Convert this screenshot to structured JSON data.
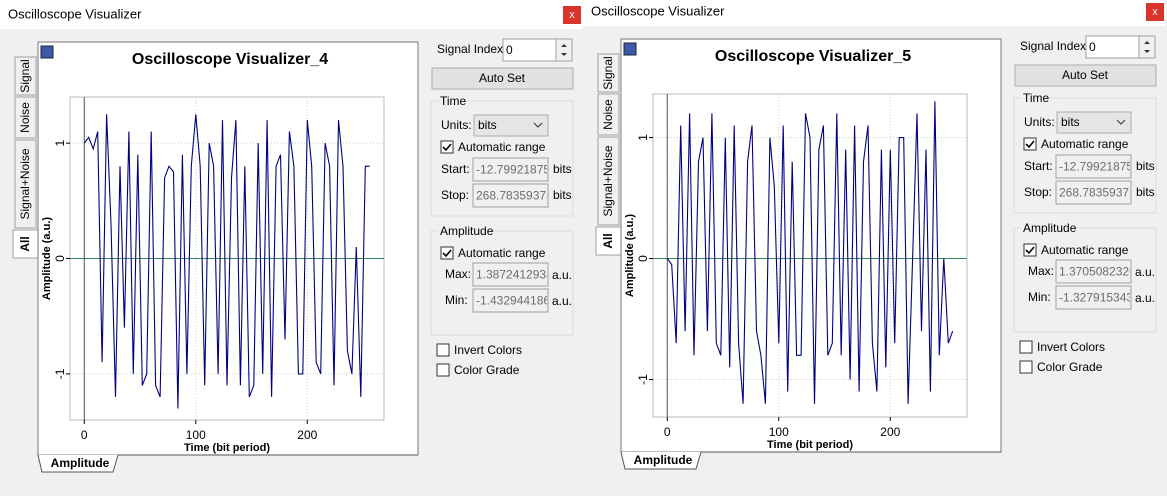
{
  "windows": [
    {
      "title": "Oscilloscope Visualizer",
      "close": "x",
      "tabs": [
        "Signal",
        "Noise",
        "Signal+Noise",
        "All"
      ],
      "active_tab": 3,
      "bottom_tab": "Amplitude",
      "signal_index_label": "Signal Index:",
      "signal_index": "0",
      "auto_set": "Auto Set",
      "time": {
        "legend": "Time",
        "units_label": "Units:",
        "units": "bits",
        "auto_range": {
          "label": "Automatic range",
          "checked": true
        },
        "start_label": "Start:",
        "start": "-12.79921875",
        "stop_label": "Stop:",
        "stop": "268.78359375",
        "unit": "bits"
      },
      "amplitude": {
        "legend": "Amplitude",
        "auto_range": {
          "label": "Automatic range",
          "checked": true
        },
        "max_label": "Max:",
        "max": "1.3872412938",
        "min_label": "Min:",
        "min": "-1.4329441866",
        "unit": "a.u."
      },
      "invert_colors": {
        "label": "Invert Colors",
        "checked": false
      },
      "color_grade": {
        "label": "Color Grade",
        "checked": false
      }
    },
    {
      "title": "Oscilloscope Visualizer",
      "close": "x",
      "tabs": [
        "Signal",
        "Noise",
        "Signal+Noise",
        "All"
      ],
      "active_tab": 3,
      "bottom_tab": "Amplitude",
      "signal_index_label": "Signal Index:",
      "signal_index": "0",
      "auto_set": "Auto Set",
      "time": {
        "legend": "Time",
        "units_label": "Units:",
        "units": "bits",
        "auto_range": {
          "label": "Automatic range",
          "checked": true
        },
        "start_label": "Start:",
        "start": "-12.79921875",
        "stop_label": "Stop:",
        "stop": "268.78359375",
        "unit": "bits"
      },
      "amplitude": {
        "legend": "Amplitude",
        "auto_range": {
          "label": "Automatic range",
          "checked": true
        },
        "max_label": "Max:",
        "max": "1.3705082320",
        "min_label": "Min:",
        "min": "-1.3279153439",
        "unit": "a.u."
      },
      "invert_colors": {
        "label": "Invert Colors",
        "checked": false
      },
      "color_grade": {
        "label": "Color Grade",
        "checked": false
      }
    }
  ],
  "chart_data": [
    {
      "type": "line",
      "title": "Oscilloscope Visualizer_4",
      "xlabel": "Time (bit period)",
      "ylabel": "Amplitude (a.u.)",
      "xlim": [
        -12.8,
        268.8
      ],
      "ylim": [
        -1.4,
        1.4
      ],
      "xticks": [
        0,
        100,
        200
      ],
      "yticks": [
        -1,
        0,
        1
      ],
      "grid": true,
      "zero_line_color": "#2e8b57",
      "x": [
        0,
        4,
        8,
        12,
        16,
        20,
        24,
        28,
        32,
        36,
        40,
        44,
        48,
        52,
        56,
        60,
        64,
        68,
        72,
        76,
        80,
        84,
        88,
        92,
        96,
        100,
        104,
        108,
        112,
        116,
        120,
        124,
        128,
        132,
        136,
        140,
        144,
        148,
        152,
        156,
        160,
        164,
        168,
        172,
        176,
        180,
        184,
        188,
        192,
        196,
        200,
        204,
        208,
        212,
        216,
        220,
        224,
        228,
        232,
        236,
        240,
        244,
        248,
        252,
        256
      ],
      "series": [
        {
          "color": "#000080",
          "values": [
            1.0,
            1.05,
            0.95,
            1.1,
            -0.9,
            1.25,
            0.3,
            -1.2,
            0.8,
            -0.6,
            1.1,
            -1.0,
            0.9,
            -1.1,
            -1.0,
            1.1,
            -1.1,
            -1.2,
            0.7,
            0.8,
            0.75,
            -1.3,
            0.9,
            -1.0,
            0.8,
            1.25,
            0.8,
            -1.1,
            1.0,
            0.8,
            -1.0,
            1.2,
            -1.1,
            0.7,
            1.2,
            -1.1,
            0.8,
            -1.2,
            -1.1,
            1.0,
            -1.0,
            1.2,
            -1.2,
            0.8,
            0.9,
            -0.7,
            1.1,
            0.8,
            -1.0,
            -1.0,
            1.2,
            0.8,
            -0.9,
            -1.0,
            1.0,
            0.8,
            -1.1,
            1.2,
            0.8,
            -0.8,
            -1.0,
            0.1,
            -1.2,
            0.8,
            0.8
          ]
        }
      ]
    },
    {
      "type": "line",
      "title": "Oscilloscope Visualizer_5",
      "xlabel": "Time (bit period)",
      "ylabel": "Amplitude (a.u.)",
      "xlim": [
        -12.8,
        268.8
      ],
      "ylim": [
        -1.31,
        1.36
      ],
      "xticks": [
        0,
        100,
        200
      ],
      "yticks": [
        -1,
        0,
        1
      ],
      "grid": true,
      "zero_line_color": "#2e8b57",
      "x": [
        0,
        4,
        8,
        12,
        16,
        20,
        24,
        28,
        32,
        36,
        40,
        44,
        48,
        52,
        56,
        60,
        64,
        68,
        72,
        76,
        80,
        84,
        88,
        92,
        96,
        100,
        104,
        108,
        112,
        116,
        120,
        124,
        128,
        132,
        136,
        140,
        144,
        148,
        152,
        156,
        160,
        164,
        168,
        172,
        176,
        180,
        184,
        188,
        192,
        196,
        200,
        204,
        208,
        212,
        216,
        220,
        224,
        228,
        232,
        236,
        240,
        244,
        248,
        252,
        256
      ],
      "series": [
        {
          "color": "#000080",
          "values": [
            0.0,
            -0.05,
            -0.7,
            1.1,
            -0.6,
            1.2,
            -0.8,
            0.8,
            1.0,
            -0.6,
            1.2,
            -0.7,
            -0.8,
            1.0,
            -0.9,
            1.1,
            -0.7,
            -1.2,
            0.8,
            1.1,
            -0.6,
            -0.8,
            -1.2,
            1.0,
            0.6,
            -0.7,
            1.1,
            -1.1,
            0.8,
            -0.8,
            -0.8,
            1.2,
            1.0,
            -1.2,
            0.9,
            1.1,
            -0.8,
            -0.7,
            1.2,
            -0.8,
            0.9,
            -1.0,
            1.1,
            -1.1,
            0.8,
            1.1,
            -0.7,
            -1.1,
            0.9,
            -0.9,
            0.9,
            -0.7,
            1.0,
            1.0,
            -1.2,
            0.0,
            1.2,
            -0.6,
            0.9,
            -1.1,
            1.3,
            -0.8,
            0.0,
            -0.7,
            -0.6
          ]
        }
      ]
    }
  ]
}
